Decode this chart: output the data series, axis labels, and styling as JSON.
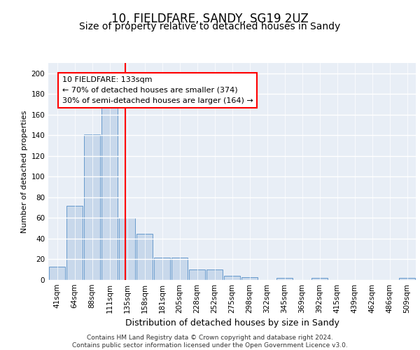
{
  "title1": "10, FIELDFARE, SANDY, SG19 2UZ",
  "title2": "Size of property relative to detached houses in Sandy",
  "xlabel": "Distribution of detached houses by size in Sandy",
  "ylabel": "Number of detached properties",
  "categories": [
    "41sqm",
    "64sqm",
    "88sqm",
    "111sqm",
    "135sqm",
    "158sqm",
    "181sqm",
    "205sqm",
    "228sqm",
    "252sqm",
    "275sqm",
    "298sqm",
    "322sqm",
    "345sqm",
    "369sqm",
    "392sqm",
    "415sqm",
    "439sqm",
    "462sqm",
    "486sqm",
    "509sqm"
  ],
  "values": [
    13,
    72,
    141,
    168,
    60,
    45,
    22,
    22,
    10,
    10,
    4,
    3,
    0,
    2,
    0,
    2,
    0,
    0,
    0,
    0,
    2
  ],
  "bar_color": "#c8d8eb",
  "bar_edge_color": "#6699cc",
  "marker_color": "red",
  "annotation_text": "10 FIELDFARE: 133sqm\n← 70% of detached houses are smaller (374)\n30% of semi-detached houses are larger (164) →",
  "annotation_box_color": "white",
  "annotation_box_edge_color": "red",
  "footer_text": "Contains HM Land Registry data © Crown copyright and database right 2024.\nContains public sector information licensed under the Open Government Licence v3.0.",
  "ylim": [
    0,
    210
  ],
  "yticks": [
    0,
    20,
    40,
    60,
    80,
    100,
    120,
    140,
    160,
    180,
    200
  ],
  "bg_color": "#e8eef6",
  "grid_color": "white",
  "title1_fontsize": 12,
  "title2_fontsize": 10,
  "xlabel_fontsize": 9,
  "ylabel_fontsize": 8,
  "tick_fontsize": 7.5,
  "annotation_fontsize": 8,
  "footer_fontsize": 6.5
}
